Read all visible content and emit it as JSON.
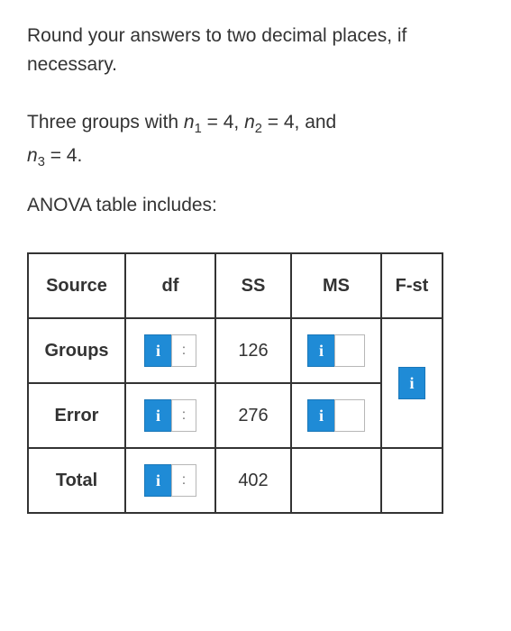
{
  "instruction": "Round your answers to two decimal places, if necessary.",
  "setup_prefix": "Three groups with ",
  "setup_n1": "n",
  "setup_n1_sub": "1",
  "setup_eq1": " = 4, ",
  "setup_n2": "n",
  "setup_n2_sub": "2",
  "setup_eq2": " = 4, and",
  "setup_n3": "n",
  "setup_n3_sub": "3",
  "setup_eq3": " = 4.",
  "table_label": "ANOVA table includes:",
  "headers": {
    "source": "Source",
    "df": "df",
    "ss": "SS",
    "ms": "MS",
    "fst": "F-st"
  },
  "rows": {
    "groups": {
      "label": "Groups",
      "ss": "126"
    },
    "error": {
      "label": "Error",
      "ss": "276"
    },
    "total": {
      "label": "Total",
      "ss": "402"
    }
  },
  "info_glyph": "i",
  "placeholder": ":",
  "colors": {
    "info_bg": "#1f8bd6",
    "border": "#333333"
  }
}
